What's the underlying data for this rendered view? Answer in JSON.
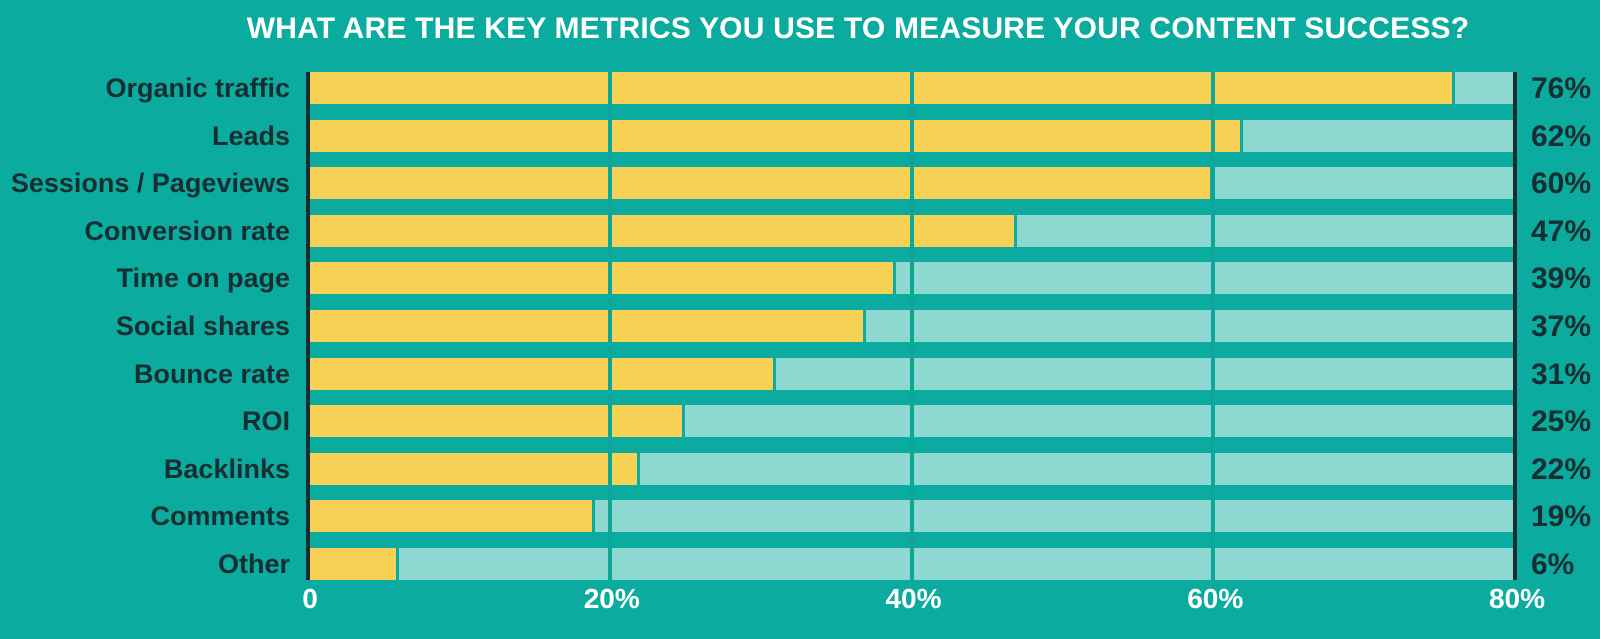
{
  "title": "WHAT ARE THE KEY METRICS YOU USE TO MEASURE YOUR CONTENT SUCCESS?",
  "colors": {
    "background": "#0bab9f",
    "bar_fill": "#f7d155",
    "bar_track": "#8ed8d2",
    "gridline": "#0da69a",
    "dark_text_and_axis": "#162e31",
    "light_text": "#ffffff"
  },
  "chart_data": {
    "type": "bar",
    "orientation": "horizontal",
    "title": "WHAT ARE THE KEY METRICS YOU USE TO MEASURE YOUR CONTENT SUCCESS?",
    "categories": [
      "Organic traffic",
      "Leads",
      "Sessions / Pageviews",
      "Conversion rate",
      "Time on page",
      "Social shares",
      "Bounce rate",
      "ROI",
      "Backlinks",
      "Comments",
      "Other"
    ],
    "values": [
      76,
      62,
      60,
      47,
      39,
      37,
      31,
      25,
      22,
      19,
      6
    ],
    "value_labels": [
      "76%",
      "62%",
      "60%",
      "47%",
      "39%",
      "37%",
      "31%",
      "25%",
      "22%",
      "19%",
      "6%"
    ],
    "xlabel": "",
    "ylabel": "",
    "xlim": [
      0,
      80
    ],
    "x_ticks": [
      {
        "label": "0",
        "value": 0
      },
      {
        "label": "20%",
        "value": 20
      },
      {
        "label": "40%",
        "value": 40
      },
      {
        "label": "60%",
        "value": 60
      },
      {
        "label": "80%",
        "value": 80
      }
    ],
    "legend": "none",
    "grid": "vertical gridlines at 20%, 40%, 60%; dark axis lines at 0 and 80%"
  }
}
